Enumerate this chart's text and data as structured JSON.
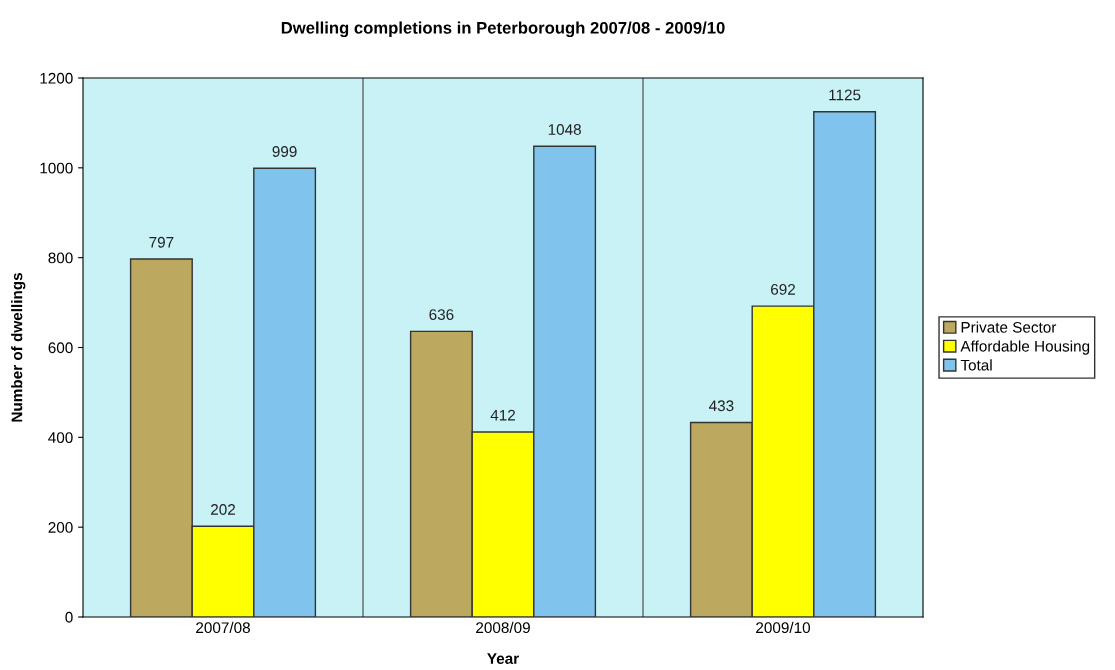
{
  "chart_data": {
    "type": "bar",
    "title": "Dwelling completions in Peterborough 2007/08 - 2009/10",
    "xlabel": "Year",
    "ylabel": "Number of dwellings",
    "categories": [
      "2007/08",
      "2008/09",
      "2009/10"
    ],
    "series": [
      {
        "name": "Private Sector",
        "color": "#bca85e",
        "values": [
          797,
          636,
          433
        ]
      },
      {
        "name": "Affordable Housing",
        "color": "#ffff00",
        "values": [
          202,
          412,
          692
        ]
      },
      {
        "name": "Total",
        "color": "#80c4ee",
        "values": [
          999,
          1048,
          1125
        ]
      }
    ],
    "ylim": [
      0,
      1200
    ],
    "yticks": [
      0,
      200,
      400,
      600,
      800,
      1000,
      1200
    ],
    "grid": "x",
    "legend": "right",
    "data_labels": true
  }
}
